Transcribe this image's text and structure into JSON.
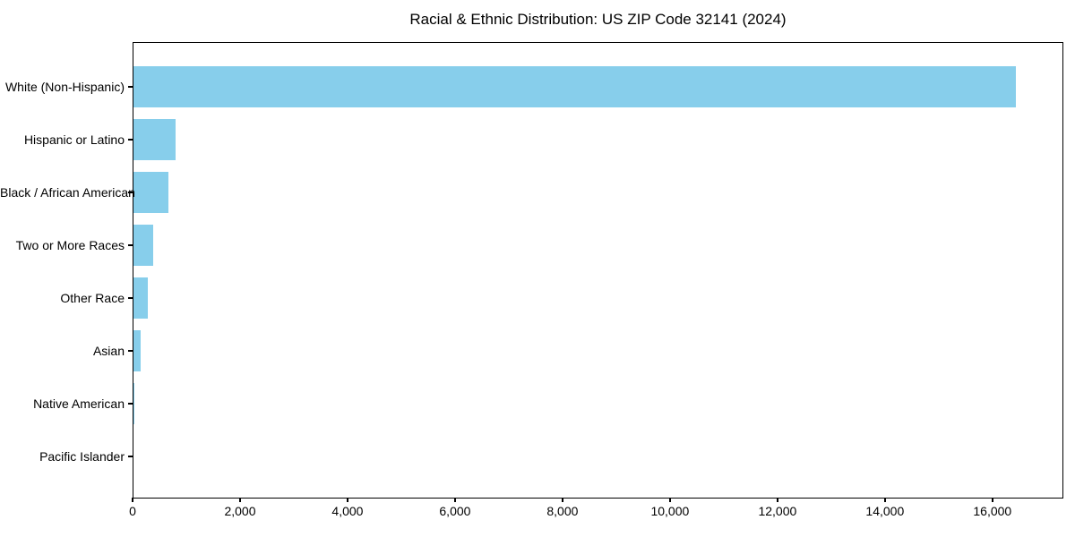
{
  "chart_data": {
    "type": "bar",
    "orientation": "horizontal",
    "title": "Racial & Ethnic Distribution: US ZIP Code 32141 (2024)",
    "categories": [
      "White (Non-Hispanic)",
      "Hispanic or Latino",
      "Black / African American",
      "Two or More Races",
      "Other Race",
      "Asian",
      "Native American",
      "Pacific Islander"
    ],
    "values": [
      16450,
      780,
      645,
      360,
      270,
      130,
      15,
      0
    ],
    "xlabel": "",
    "ylabel": "",
    "xlim": [
      0,
      17320
    ],
    "x_ticks": [
      0,
      2000,
      4000,
      6000,
      8000,
      10000,
      12000,
      14000,
      16000
    ],
    "x_tick_labels": [
      "0",
      "2,000",
      "4,000",
      "6,000",
      "8,000",
      "10,000",
      "12,000",
      "14,000",
      "16,000"
    ],
    "bar_color": "#87CEEB",
    "axis_color": "#000000",
    "text_color": "#000000",
    "background_color": "#ffffff",
    "grid": false,
    "legend": null
  }
}
